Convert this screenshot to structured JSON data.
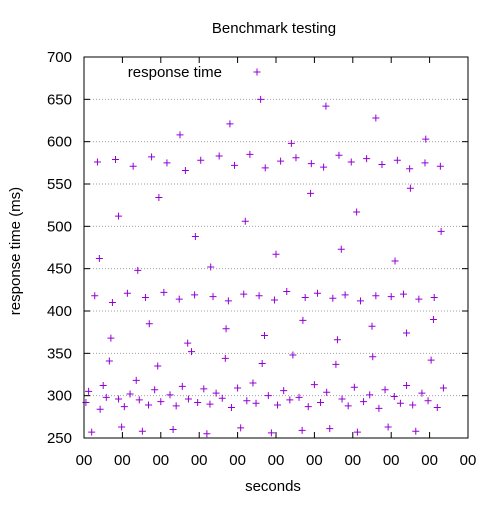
{
  "chart_data": {
    "type": "scatter",
    "title": "Benchmark testing",
    "xlabel": "seconds",
    "ylabel": "response time (ms)",
    "xlim": [
      0,
      10
    ],
    "ylim": [
      250,
      700
    ],
    "x_ticks": [
      0,
      1,
      2,
      3,
      4,
      5,
      6,
      7,
      8,
      9,
      10
    ],
    "x_tick_labels": [
      "00",
      "00",
      "00",
      "00",
      "00",
      "00",
      "00",
      "00",
      "00",
      "00",
      "00"
    ],
    "y_ticks": [
      250,
      300,
      350,
      400,
      450,
      500,
      550,
      600,
      650,
      700
    ],
    "y_tick_labels": [
      "250",
      "300",
      "350",
      "400",
      "450",
      "500",
      "550",
      "600",
      "650",
      "700"
    ],
    "grid": "horizontal-dotted",
    "legend_position": "top-left",
    "series": [
      {
        "name": "response time",
        "color": "#9400d3",
        "marker": "plus",
        "points": [
          [
            0.05,
            292
          ],
          [
            0.12,
            305
          ],
          [
            0.2,
            257
          ],
          [
            0.28,
            418
          ],
          [
            0.35,
            576
          ],
          [
            0.42,
            284
          ],
          [
            0.5,
            312
          ],
          [
            0.58,
            298
          ],
          [
            0.66,
            341
          ],
          [
            0.74,
            410
          ],
          [
            0.82,
            579
          ],
          [
            0.9,
            296
          ],
          [
            0.98,
            263
          ],
          [
            1.05,
            287
          ],
          [
            1.13,
            421
          ],
          [
            1.2,
            302
          ],
          [
            1.28,
            571
          ],
          [
            1.36,
            318
          ],
          [
            1.44,
            295
          ],
          [
            1.52,
            258
          ],
          [
            1.6,
            416
          ],
          [
            1.68,
            289
          ],
          [
            1.76,
            582
          ],
          [
            1.84,
            307
          ],
          [
            1.92,
            335
          ],
          [
            2.0,
            293
          ],
          [
            2.08,
            422
          ],
          [
            2.16,
            575
          ],
          [
            2.24,
            301
          ],
          [
            2.32,
            260
          ],
          [
            2.4,
            288
          ],
          [
            2.48,
            414
          ],
          [
            2.56,
            311
          ],
          [
            2.64,
            566
          ],
          [
            2.72,
            296
          ],
          [
            2.8,
            352
          ],
          [
            2.88,
            419
          ],
          [
            2.96,
            292
          ],
          [
            3.04,
            578
          ],
          [
            3.12,
            308
          ],
          [
            3.2,
            255
          ],
          [
            3.28,
            290
          ],
          [
            3.36,
            417
          ],
          [
            3.44,
            303
          ],
          [
            3.52,
            583
          ],
          [
            3.6,
            297
          ],
          [
            3.68,
            344
          ],
          [
            3.76,
            412
          ],
          [
            3.84,
            286
          ],
          [
            3.92,
            572
          ],
          [
            4.0,
            309
          ],
          [
            4.08,
            262
          ],
          [
            4.16,
            420
          ],
          [
            4.24,
            294
          ],
          [
            4.32,
            585
          ],
          [
            4.4,
            315
          ],
          [
            4.48,
            291
          ],
          [
            4.56,
            418
          ],
          [
            4.64,
            338
          ],
          [
            4.72,
            569
          ],
          [
            4.8,
            300
          ],
          [
            4.88,
            256
          ],
          [
            4.96,
            413
          ],
          [
            5.04,
            289
          ],
          [
            5.12,
            577
          ],
          [
            5.2,
            306
          ],
          [
            5.28,
            423
          ],
          [
            5.36,
            295
          ],
          [
            5.44,
            348
          ],
          [
            5.52,
            581
          ],
          [
            5.6,
            298
          ],
          [
            5.68,
            259
          ],
          [
            5.76,
            416
          ],
          [
            5.84,
            287
          ],
          [
            5.92,
            574
          ],
          [
            6.0,
            313
          ],
          [
            6.08,
            421
          ],
          [
            6.16,
            292
          ],
          [
            6.24,
            570
          ],
          [
            6.32,
            304
          ],
          [
            6.4,
            261
          ],
          [
            6.48,
            415
          ],
          [
            6.56,
            337
          ],
          [
            6.64,
            584
          ],
          [
            6.72,
            296
          ],
          [
            6.8,
            419
          ],
          [
            6.88,
            288
          ],
          [
            6.96,
            576
          ],
          [
            7.04,
            310
          ],
          [
            7.12,
            257
          ],
          [
            7.2,
            412
          ],
          [
            7.28,
            293
          ],
          [
            7.36,
            580
          ],
          [
            7.44,
            301
          ],
          [
            7.52,
            346
          ],
          [
            7.6,
            418
          ],
          [
            7.68,
            285
          ],
          [
            7.76,
            573
          ],
          [
            7.84,
            307
          ],
          [
            7.92,
            263
          ],
          [
            8.0,
            417
          ],
          [
            8.08,
            299
          ],
          [
            8.16,
            578
          ],
          [
            8.24,
            291
          ],
          [
            8.32,
            420
          ],
          [
            8.4,
            312
          ],
          [
            8.48,
            568
          ],
          [
            8.56,
            289
          ],
          [
            8.64,
            258
          ],
          [
            8.72,
            414
          ],
          [
            8.8,
            303
          ],
          [
            8.88,
            575
          ],
          [
            8.96,
            294
          ],
          [
            9.04,
            342
          ],
          [
            9.12,
            416
          ],
          [
            9.2,
            286
          ],
          [
            9.28,
            571
          ],
          [
            9.36,
            309
          ],
          [
            0.4,
            462
          ],
          [
            0.9,
            512
          ],
          [
            1.4,
            448
          ],
          [
            1.95,
            534
          ],
          [
            2.5,
            608
          ],
          [
            2.9,
            488
          ],
          [
            3.3,
            452
          ],
          [
            3.8,
            621
          ],
          [
            4.2,
            506
          ],
          [
            4.6,
            650
          ],
          [
            5.0,
            467
          ],
          [
            5.4,
            598
          ],
          [
            5.9,
            539
          ],
          [
            6.3,
            642
          ],
          [
            6.7,
            473
          ],
          [
            7.1,
            517
          ],
          [
            7.6,
            628
          ],
          [
            8.1,
            459
          ],
          [
            8.5,
            545
          ],
          [
            8.9,
            603
          ],
          [
            9.3,
            494
          ],
          [
            0.7,
            368
          ],
          [
            1.7,
            385
          ],
          [
            2.7,
            362
          ],
          [
            3.7,
            379
          ],
          [
            4.7,
            371
          ],
          [
            5.7,
            389
          ],
          [
            6.6,
            366
          ],
          [
            7.5,
            382
          ],
          [
            8.4,
            374
          ],
          [
            9.1,
            390
          ]
        ]
      }
    ]
  }
}
